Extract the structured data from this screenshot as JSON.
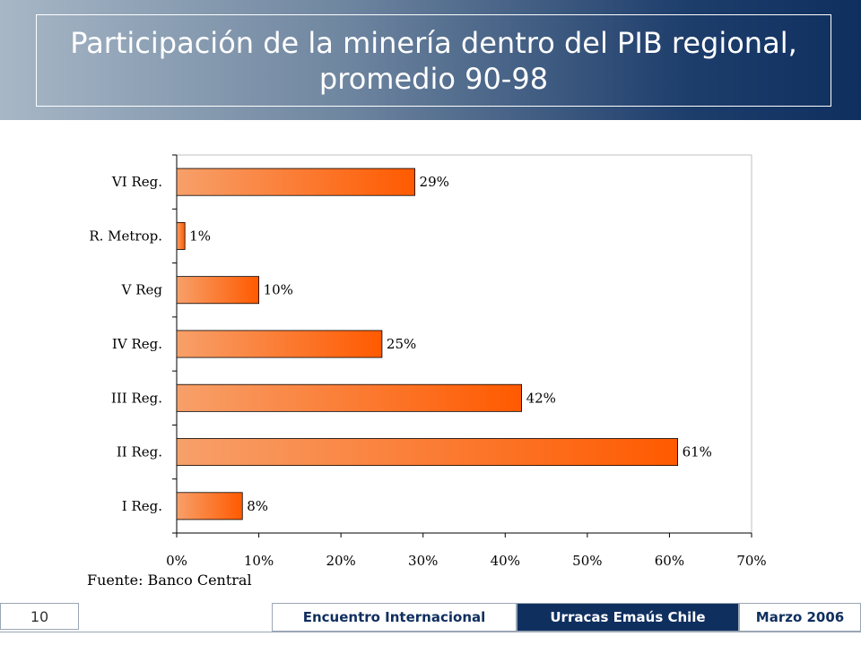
{
  "slide": {
    "title_line1": "Participación de la minería dentro del PIB regional,",
    "title_line2": "promedio 90-98",
    "source": "Fuente: Banco Central",
    "page_number": "10"
  },
  "footer": {
    "left": "Encuentro Internacional",
    "center": "Urracas Emaús Chile",
    "right": "Marzo 2006"
  },
  "colors": {
    "header_dark": "#0f2f5f",
    "bar_start": "#f7a06a",
    "bar_end": "#ff5a00"
  },
  "chart_data": {
    "type": "bar",
    "orientation": "horizontal",
    "categories": [
      "VI Reg.",
      "R. Metrop.",
      "V Reg",
      "IV Reg.",
      "III Reg.",
      "II Reg.",
      "I Reg."
    ],
    "values": [
      29,
      1,
      10,
      25,
      42,
      61,
      8
    ],
    "value_labels": [
      "29%",
      "1%",
      "10%",
      "25%",
      "42%",
      "61%",
      "8%"
    ],
    "x_ticks": [
      "0%",
      "10%",
      "20%",
      "30%",
      "40%",
      "50%",
      "60%",
      "70%"
    ],
    "xlim": [
      0,
      70
    ],
    "grid": false,
    "legend": "none"
  }
}
